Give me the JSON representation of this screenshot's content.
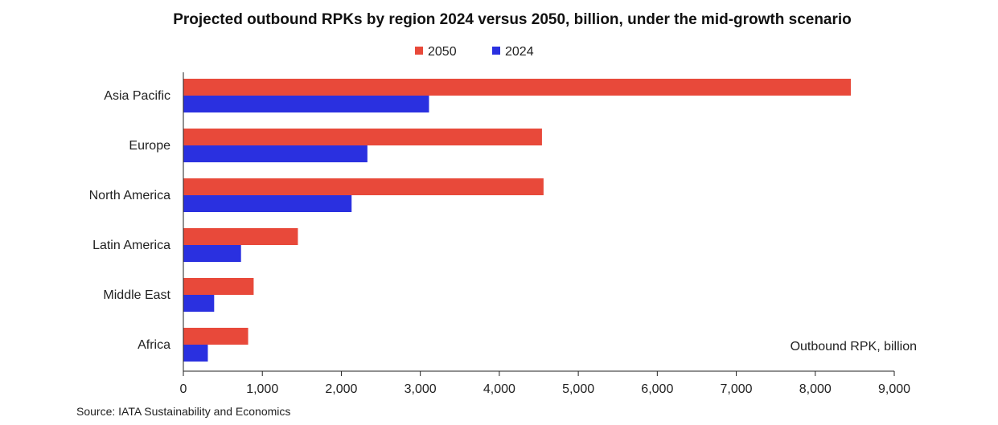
{
  "chart_data": {
    "type": "bar",
    "orientation": "horizontal",
    "title": "Projected outbound RPKs by region 2024 versus 2050, billion, under the mid-growth scenario",
    "categories": [
      "Asia Pacific",
      "Europe",
      "North America",
      "Latin America",
      "Middle East",
      "Africa"
    ],
    "series": [
      {
        "name": "2050",
        "color": "#e8493a",
        "values": [
          8450,
          4540,
          4560,
          1450,
          890,
          820
        ]
      },
      {
        "name": "2024",
        "color": "#2a30e0",
        "values": [
          3110,
          2330,
          2130,
          730,
          390,
          310
        ]
      }
    ],
    "xlabel": "Outbound RPK, billion",
    "xlim": [
      0,
      9000
    ],
    "xticks": [
      0,
      1000,
      2000,
      3000,
      4000,
      5000,
      6000,
      7000,
      8000,
      9000
    ],
    "xtick_labels": [
      "0",
      "1,000",
      "2,000",
      "3,000",
      "4,000",
      "5,000",
      "6,000",
      "7,000",
      "8,000",
      "9,000"
    ],
    "legend_position": "top-center",
    "grid": false,
    "source": "Source: IATA Sustainability and Economics"
  }
}
